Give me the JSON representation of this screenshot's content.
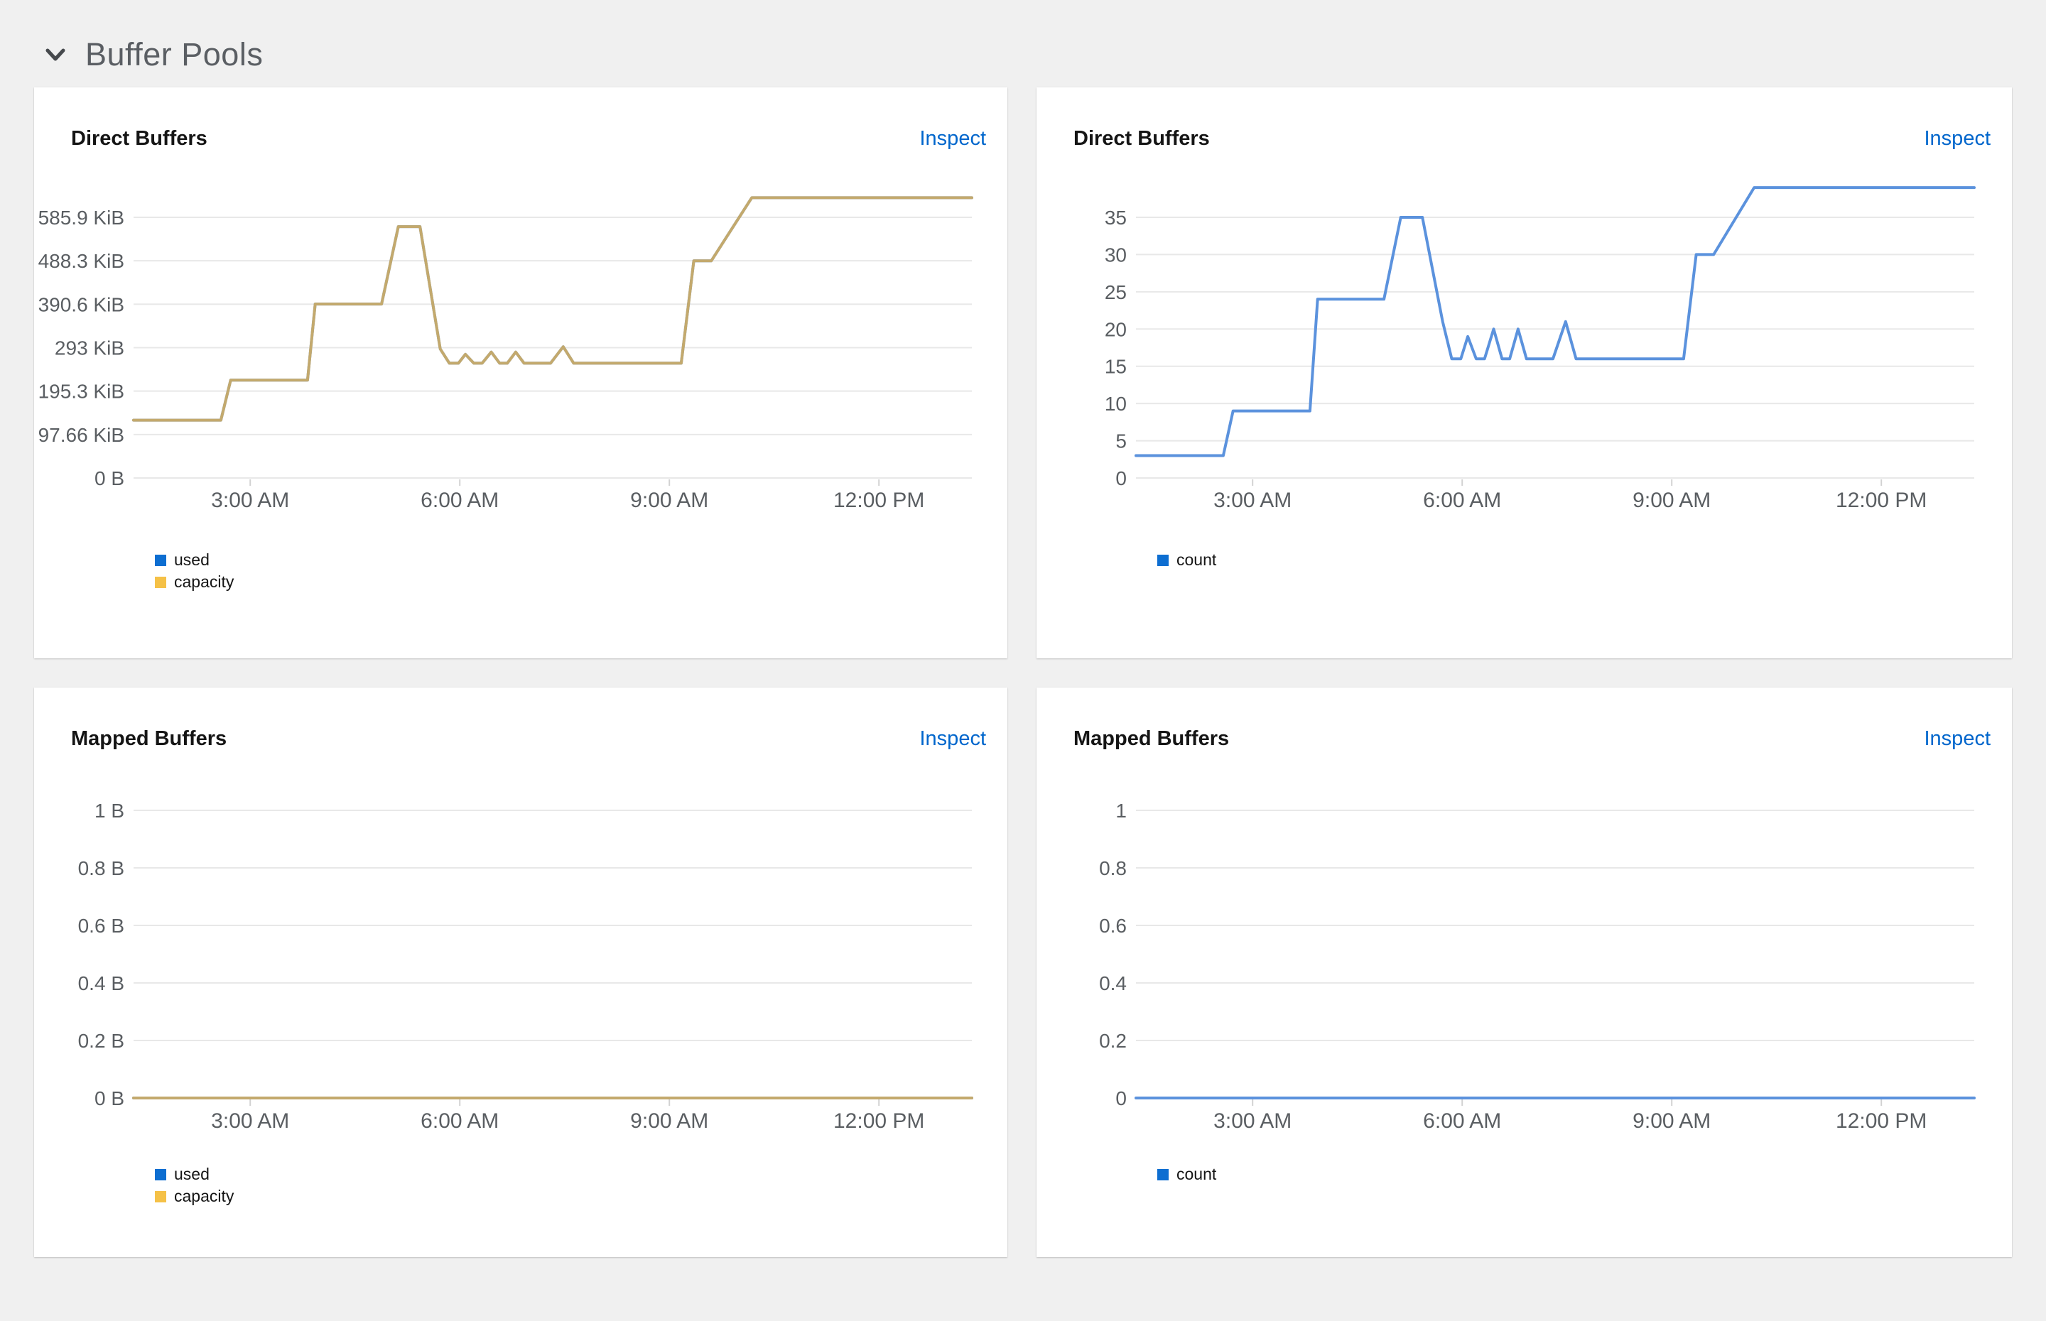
{
  "section": {
    "title": "Buffer Pools"
  },
  "colors": {
    "page_background": "#f0f0f0",
    "panel_background": "#ffffff",
    "inspect_link": "#0066cc",
    "axis_label": "#5a5e62",
    "grid_line": "#e8e8e8",
    "used_line": "#5b92dd",
    "capacity_line": "#c3a96d",
    "legend_used_swatch": "#0d6ed1",
    "legend_capacity_swatch": "#f5c147"
  },
  "panels": [
    {
      "title": "Direct Buffers",
      "inspect_label": "Inspect"
    },
    {
      "title": "Direct Buffers",
      "inspect_label": "Inspect"
    },
    {
      "title": "Mapped Buffers",
      "inspect_label": "Inspect"
    },
    {
      "title": "Mapped Buffers",
      "inspect_label": "Inspect"
    }
  ],
  "chart_data": [
    {
      "type": "line",
      "title": "Direct Buffers",
      "unit": "bytes",
      "x_range_hours": [
        1.33,
        13.33
      ],
      "x_ticks": [
        {
          "t": 3,
          "label": "3:00 AM"
        },
        {
          "t": 6,
          "label": "6:00 AM"
        },
        {
          "t": 9,
          "label": "9:00 AM"
        },
        {
          "t": 12,
          "label": "12:00 PM"
        }
      ],
      "y_grid_max": 585.9,
      "y_ticks": [
        {
          "v": 0,
          "label": "0 B"
        },
        {
          "v": 97.66,
          "label": "97.66 KiB"
        },
        {
          "v": 195.3,
          "label": "195.3 KiB"
        },
        {
          "v": 293,
          "label": "293 KiB"
        },
        {
          "v": 390.6,
          "label": "390.6 KiB"
        },
        {
          "v": 488.3,
          "label": "488.3 KiB"
        },
        {
          "v": 585.9,
          "label": "585.9 KiB"
        }
      ],
      "series": [
        {
          "name": "used",
          "color": "#5b92dd",
          "points": [
            [
              1.33,
              130
            ],
            [
              2.58,
              130
            ],
            [
              2.72,
              220
            ],
            [
              3.82,
              220
            ],
            [
              3.93,
              391
            ],
            [
              4.88,
              391
            ],
            [
              5.12,
              565
            ],
            [
              5.43,
              565
            ],
            [
              5.72,
              290
            ],
            [
              5.85,
              258
            ],
            [
              5.98,
              258
            ],
            [
              6.08,
              278
            ],
            [
              6.2,
              258
            ],
            [
              6.32,
              258
            ],
            [
              6.45,
              283
            ],
            [
              6.57,
              258
            ],
            [
              6.68,
              258
            ],
            [
              6.8,
              283
            ],
            [
              6.92,
              258
            ],
            [
              7.3,
              258
            ],
            [
              7.48,
              295
            ],
            [
              7.63,
              258
            ],
            [
              9.17,
              258
            ],
            [
              9.35,
              488
            ],
            [
              9.6,
              488
            ],
            [
              10.18,
              630
            ],
            [
              13.33,
              630
            ]
          ]
        },
        {
          "name": "capacity",
          "color": "#c3a96d",
          "points": [
            [
              1.33,
              130
            ],
            [
              2.58,
              130
            ],
            [
              2.72,
              220
            ],
            [
              3.82,
              220
            ],
            [
              3.93,
              391
            ],
            [
              4.88,
              391
            ],
            [
              5.12,
              565
            ],
            [
              5.43,
              565
            ],
            [
              5.72,
              290
            ],
            [
              5.85,
              258
            ],
            [
              5.98,
              258
            ],
            [
              6.08,
              278
            ],
            [
              6.2,
              258
            ],
            [
              6.32,
              258
            ],
            [
              6.45,
              283
            ],
            [
              6.57,
              258
            ],
            [
              6.68,
              258
            ],
            [
              6.8,
              283
            ],
            [
              6.92,
              258
            ],
            [
              7.3,
              258
            ],
            [
              7.48,
              295
            ],
            [
              7.63,
              258
            ],
            [
              9.17,
              258
            ],
            [
              9.35,
              488
            ],
            [
              9.6,
              488
            ],
            [
              10.18,
              630
            ],
            [
              13.33,
              630
            ]
          ]
        }
      ],
      "legend": [
        {
          "label": "used",
          "color": "#0d6ed1"
        },
        {
          "label": "capacity",
          "color": "#f5c147"
        }
      ]
    },
    {
      "type": "line",
      "title": "Direct Buffers",
      "unit": "count",
      "x_range_hours": [
        1.33,
        13.33
      ],
      "x_ticks": [
        {
          "t": 3,
          "label": "3:00 AM"
        },
        {
          "t": 6,
          "label": "6:00 AM"
        },
        {
          "t": 9,
          "label": "9:00 AM"
        },
        {
          "t": 12,
          "label": "12:00 PM"
        }
      ],
      "y_grid_max": 35,
      "y_ticks": [
        {
          "v": 0,
          "label": "0"
        },
        {
          "v": 5,
          "label": "5"
        },
        {
          "v": 10,
          "label": "10"
        },
        {
          "v": 15,
          "label": "15"
        },
        {
          "v": 20,
          "label": "20"
        },
        {
          "v": 25,
          "label": "25"
        },
        {
          "v": 30,
          "label": "30"
        },
        {
          "v": 35,
          "label": "35"
        }
      ],
      "series": [
        {
          "name": "count",
          "color": "#5b92dd",
          "points": [
            [
              1.33,
              3
            ],
            [
              2.58,
              3
            ],
            [
              2.72,
              9
            ],
            [
              3.82,
              9
            ],
            [
              3.93,
              24
            ],
            [
              4.88,
              24
            ],
            [
              5.12,
              35
            ],
            [
              5.43,
              35
            ],
            [
              5.72,
              21
            ],
            [
              5.85,
              16
            ],
            [
              5.98,
              16
            ],
            [
              6.08,
              19
            ],
            [
              6.2,
              16
            ],
            [
              6.32,
              16
            ],
            [
              6.45,
              20
            ],
            [
              6.57,
              16
            ],
            [
              6.68,
              16
            ],
            [
              6.8,
              20
            ],
            [
              6.92,
              16
            ],
            [
              7.3,
              16
            ],
            [
              7.48,
              21
            ],
            [
              7.63,
              16
            ],
            [
              9.17,
              16
            ],
            [
              9.35,
              30
            ],
            [
              9.6,
              30
            ],
            [
              10.18,
              39
            ],
            [
              13.33,
              39
            ]
          ]
        }
      ],
      "legend": [
        {
          "label": "count",
          "color": "#0d6ed1"
        }
      ]
    },
    {
      "type": "line",
      "title": "Mapped Buffers",
      "unit": "bytes",
      "x_range_hours": [
        1.33,
        13.33
      ],
      "x_ticks": [
        {
          "t": 3,
          "label": "3:00 AM"
        },
        {
          "t": 6,
          "label": "6:00 AM"
        },
        {
          "t": 9,
          "label": "9:00 AM"
        },
        {
          "t": 12,
          "label": "12:00 PM"
        }
      ],
      "y_grid_max": 1,
      "y_ticks": [
        {
          "v": 0,
          "label": "0 B"
        },
        {
          "v": 0.2,
          "label": "0.2 B"
        },
        {
          "v": 0.4,
          "label": "0.4 B"
        },
        {
          "v": 0.6,
          "label": "0.6 B"
        },
        {
          "v": 0.8,
          "label": "0.8 B"
        },
        {
          "v": 1,
          "label": "1 B"
        }
      ],
      "series": [
        {
          "name": "used",
          "color": "#5b92dd",
          "points": [
            [
              1.33,
              0
            ],
            [
              13.33,
              0
            ]
          ]
        },
        {
          "name": "capacity",
          "color": "#c3a96d",
          "points": [
            [
              1.33,
              0
            ],
            [
              13.33,
              0
            ]
          ]
        }
      ],
      "legend": [
        {
          "label": "used",
          "color": "#0d6ed1"
        },
        {
          "label": "capacity",
          "color": "#f5c147"
        }
      ]
    },
    {
      "type": "line",
      "title": "Mapped Buffers",
      "unit": "count",
      "x_range_hours": [
        1.33,
        13.33
      ],
      "x_ticks": [
        {
          "t": 3,
          "label": "3:00 AM"
        },
        {
          "t": 6,
          "label": "6:00 AM"
        },
        {
          "t": 9,
          "label": "9:00 AM"
        },
        {
          "t": 12,
          "label": "12:00 PM"
        }
      ],
      "y_grid_max": 1,
      "y_ticks": [
        {
          "v": 0,
          "label": "0"
        },
        {
          "v": 0.2,
          "label": "0.2"
        },
        {
          "v": 0.4,
          "label": "0.4"
        },
        {
          "v": 0.6,
          "label": "0.6"
        },
        {
          "v": 0.8,
          "label": "0.8"
        },
        {
          "v": 1,
          "label": "1"
        }
      ],
      "series": [
        {
          "name": "count",
          "color": "#5b92dd",
          "points": [
            [
              1.33,
              0
            ],
            [
              13.33,
              0
            ]
          ]
        }
      ],
      "legend": [
        {
          "label": "count",
          "color": "#0d6ed1"
        }
      ]
    }
  ]
}
